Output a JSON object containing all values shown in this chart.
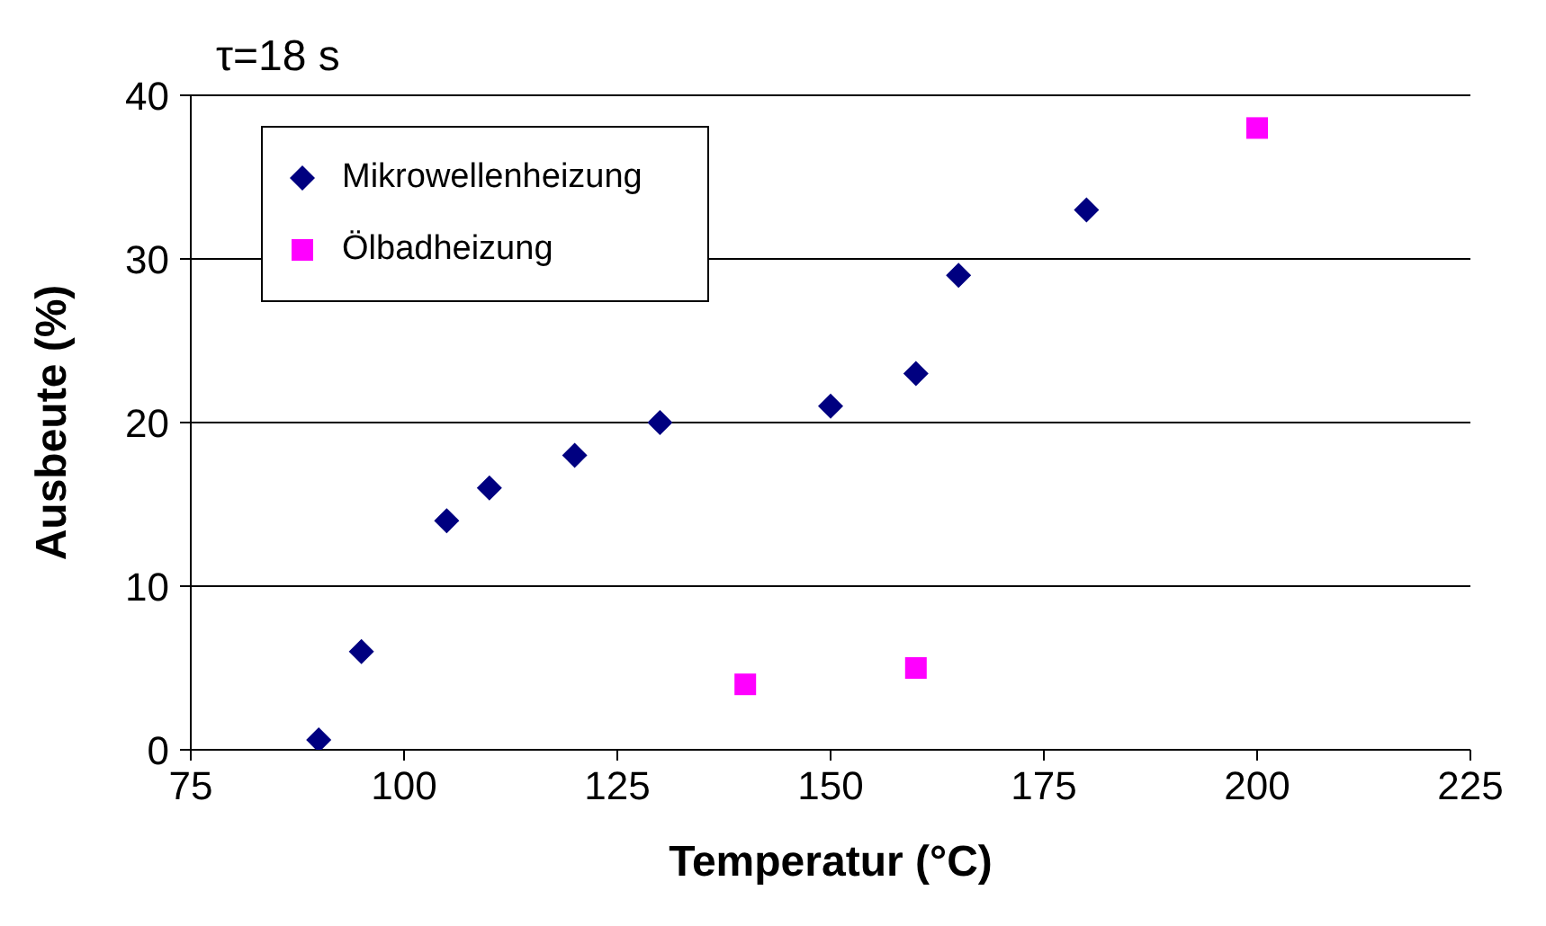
{
  "chart_data": {
    "type": "scatter",
    "title": "τ=18 s",
    "xlabel": "Temperatur (°C)",
    "ylabel": "Ausbeute (%)",
    "xlim": [
      75,
      225
    ],
    "xticks": [
      75,
      100,
      125,
      150,
      175,
      200,
      225
    ],
    "ylim": [
      0,
      40
    ],
    "yticks": [
      0,
      10,
      20,
      30,
      40
    ],
    "grid": "y",
    "legend": "top left",
    "series": [
      {
        "name": "Mikrowellenheizung",
        "color": "#000080",
        "marker": "diamond",
        "x": [
          90,
          95,
          105,
          110,
          120,
          130,
          150,
          160,
          165,
          180
        ],
        "values": [
          0.6,
          6,
          14,
          16,
          18,
          20,
          21,
          23,
          29,
          33
        ]
      },
      {
        "name": "Ölbadheizung",
        "color": "#ff00ff",
        "marker": "square",
        "x": [
          140,
          160,
          200
        ],
        "values": [
          4,
          5,
          38
        ]
      }
    ]
  }
}
